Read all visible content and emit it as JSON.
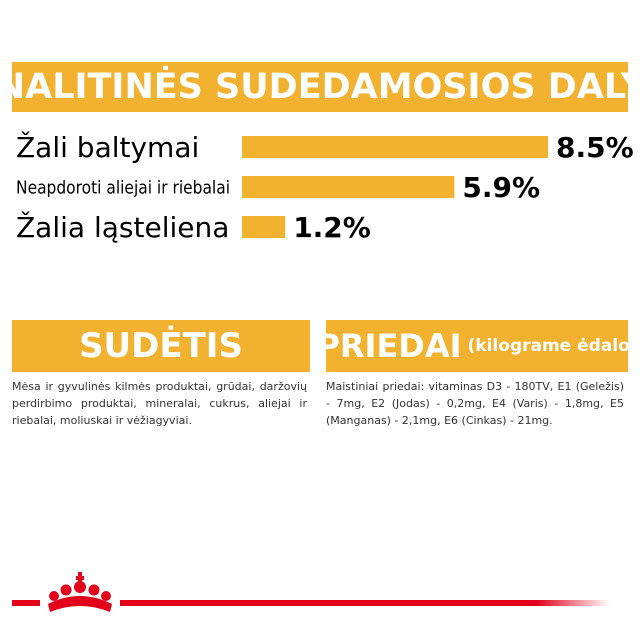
{
  "chart_data": {
    "type": "bar",
    "orientation": "horizontal",
    "title": "ANALITINĖS SUDEDAMOSIOS DALYS",
    "categories": [
      "Žali baltymai",
      "Neapdoroti aliejai ir riebalai",
      "Žalia ląsteliena"
    ],
    "values": [
      8.5,
      5.9,
      1.2
    ],
    "value_labels": [
      "8.5%",
      "5.9%",
      "1.2%"
    ],
    "color": "#f2b12e"
  },
  "sections": [
    {
      "title": "SUDĖTIS",
      "text": "Mėsa ir gyvulinės kilmės produktai, grūdai, daržovių perdirbimo produktai, mineralai, cukrus, aliejai ir riebalai, moliuskai ir vėžiagyviai."
    },
    {
      "title": "PRIEDAI",
      "subtitle": "(kilograme ėdalo)",
      "text": "Maistiniai priedai: vitaminas D3 - 180TV, E1 (Geležis) - 7mg, E2 (Jodas) - 0,2mg, E4 (Varis) - 1,8mg, E5 (Manganas) - 2,1mg, E6 (Cinkas) - 21mg."
    }
  ]
}
